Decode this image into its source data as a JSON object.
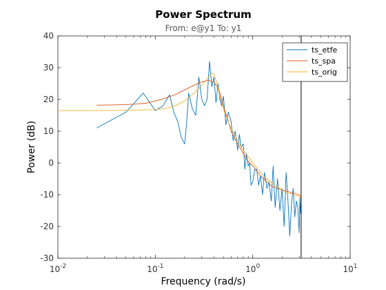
{
  "chart_data": {
    "type": "line",
    "title": "Power Spectrum",
    "subtitle": "From: e@y1  To: y1",
    "xlabel": "Frequency  (rad/s)",
    "ylabel": "Power (dB)",
    "xscale": "log",
    "xlim": [
      0.01,
      10
    ],
    "ylim": [
      -30,
      40
    ],
    "xticks": [
      0.01,
      0.1,
      1,
      10
    ],
    "xtick_labels": [
      {
        "base": "10",
        "exp": "-2"
      },
      {
        "base": "10",
        "exp": "-1"
      },
      {
        "base": "10",
        "exp": "0"
      },
      {
        "base": "10",
        "exp": "1"
      }
    ],
    "yticks": [
      -30,
      -20,
      -10,
      0,
      10,
      20,
      30,
      40
    ],
    "grid": false,
    "legend_position": "top-right",
    "vertical_line_x": 3.14,
    "series": [
      {
        "name": "ts_etfe",
        "color": "#0072BD",
        "x": [
          0.025,
          0.05,
          0.075,
          0.1,
          0.12,
          0.14,
          0.155,
          0.17,
          0.185,
          0.2,
          0.21,
          0.22,
          0.24,
          0.26,
          0.28,
          0.3,
          0.32,
          0.34,
          0.36,
          0.38,
          0.4,
          0.42,
          0.44,
          0.46,
          0.48,
          0.5,
          0.53,
          0.56,
          0.6,
          0.63,
          0.66,
          0.7,
          0.73,
          0.76,
          0.8,
          0.83,
          0.86,
          0.9,
          0.93,
          0.96,
          1.0,
          1.05,
          1.1,
          1.15,
          1.2,
          1.26,
          1.32,
          1.4,
          1.47,
          1.55,
          1.62,
          1.7,
          1.8,
          1.9,
          2.0,
          2.1,
          2.2,
          2.3,
          2.4,
          2.5,
          2.6,
          2.7,
          2.8,
          2.9,
          3.0,
          3.05,
          3.1,
          3.14
        ],
        "y": [
          11,
          16,
          22,
          16.5,
          18,
          21.5,
          16,
          13,
          8,
          6,
          13,
          22,
          17,
          15,
          27,
          20,
          18,
          20,
          32,
          24,
          27,
          19,
          25,
          20,
          18,
          21,
          12,
          16,
          13,
          7,
          10,
          4,
          9,
          5,
          6,
          -2,
          3,
          -1,
          0,
          -7,
          -6,
          -2,
          -2,
          -7,
          -4,
          -10,
          -3,
          -8,
          -6,
          -12,
          -1,
          -14,
          -5,
          -15,
          -8,
          -20,
          -3,
          -12,
          -23,
          -13,
          -8,
          -17,
          -12,
          -14,
          -22,
          -11,
          -16,
          -13
        ]
      },
      {
        "name": "ts_spa",
        "color": "#D95319",
        "x": [
          0.025,
          0.04,
          0.06,
          0.08,
          0.1,
          0.13,
          0.16,
          0.2,
          0.25,
          0.3,
          0.35,
          0.4,
          0.45,
          0.5,
          0.55,
          0.6,
          0.7,
          0.8,
          0.9,
          1.0,
          1.2,
          1.4,
          1.6,
          1.8,
          2.0,
          2.3,
          2.6,
          3.0,
          3.14
        ],
        "y": [
          18.2,
          18.3,
          18.5,
          18.8,
          19.5,
          20.5,
          21.5,
          23,
          24.5,
          25.5,
          26,
          25.5,
          23,
          18,
          14,
          10,
          6,
          3,
          0.5,
          -1,
          -4,
          -6,
          -7.5,
          -8,
          -8.5,
          -9,
          -9.5,
          -10,
          -10.5
        ]
      },
      {
        "name": "ts_orig",
        "color": "#EDB120",
        "x": [
          0.01,
          0.03,
          0.06,
          0.1,
          0.13,
          0.16,
          0.2,
          0.25,
          0.3,
          0.35,
          0.38,
          0.4,
          0.43,
          0.46,
          0.5,
          0.55,
          0.6,
          0.7,
          0.8,
          0.9,
          1.0,
          1.2,
          1.4,
          1.6,
          1.8,
          2.0,
          2.3,
          2.6,
          3.0,
          3.14
        ],
        "y": [
          16.5,
          16.5,
          16.6,
          16.8,
          17.2,
          18,
          19.5,
          22,
          24.5,
          27,
          28.3,
          28,
          25,
          21,
          17,
          13.5,
          11,
          7,
          4,
          2,
          0,
          -3,
          -5,
          -6.5,
          -7.5,
          -8.5,
          -9.5,
          -10,
          -10.5,
          -11
        ]
      }
    ]
  }
}
